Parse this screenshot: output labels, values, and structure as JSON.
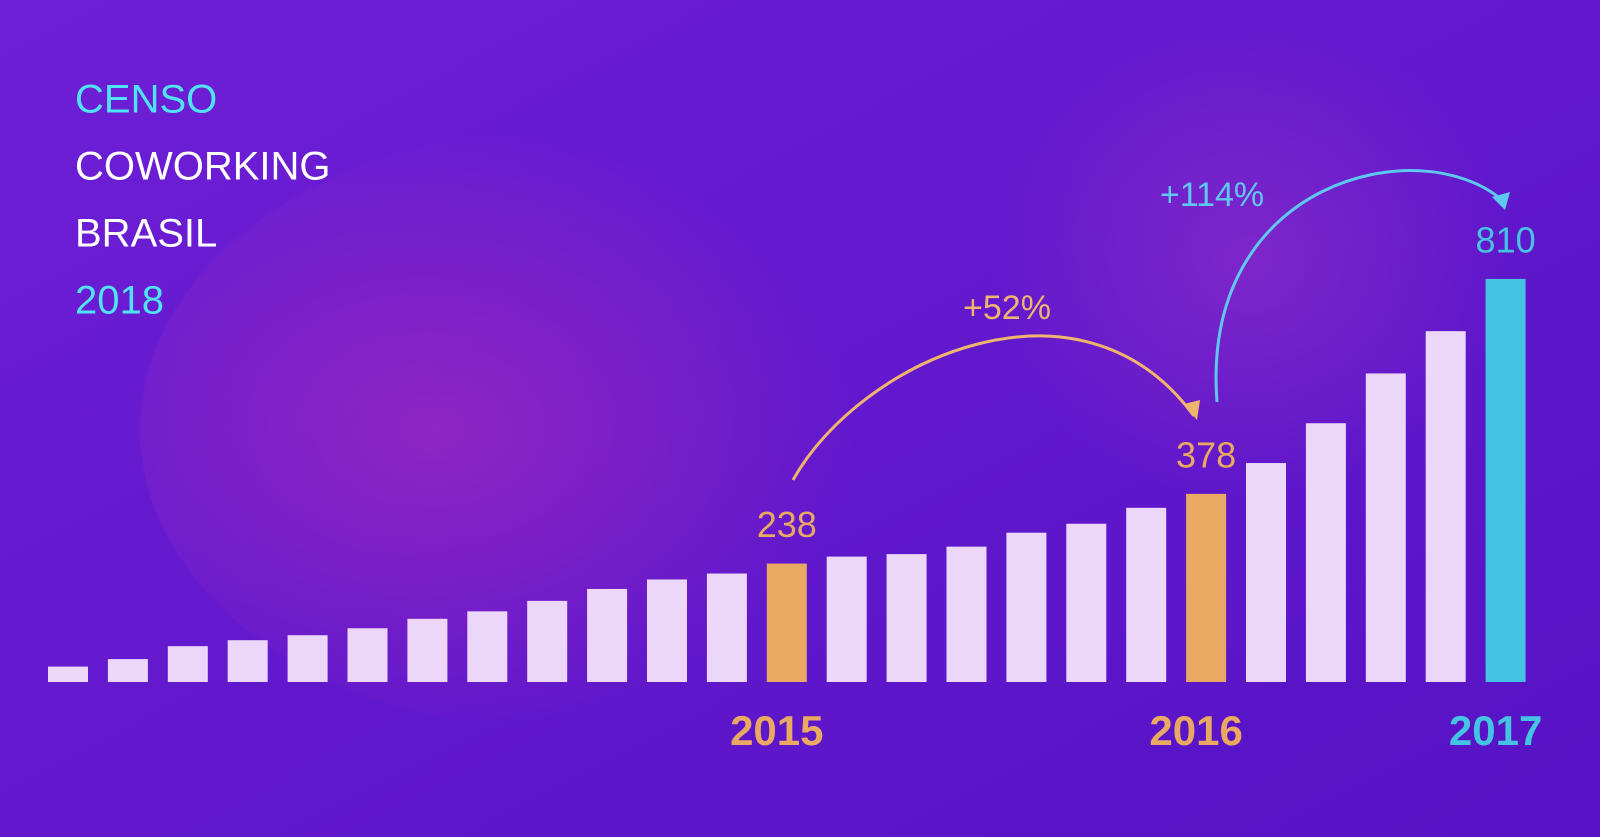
{
  "chart_data": {
    "type": "bar",
    "title_lines": [
      {
        "text": "CENSO",
        "color": "#4fe3f5"
      },
      {
        "text": "COWORKING",
        "color": "#ffffff"
      },
      {
        "text": "BRASIL",
        "color": "#ffffff"
      },
      {
        "text": "2018",
        "color": "#4fe3f5"
      }
    ],
    "categories": [
      null,
      null,
      null,
      null,
      null,
      null,
      null,
      null,
      null,
      null,
      null,
      null,
      "2015",
      null,
      null,
      null,
      null,
      null,
      null,
      "2016",
      null,
      null,
      null,
      null,
      "2017"
    ],
    "values": [
      31,
      46,
      72,
      84,
      94,
      108,
      127,
      142,
      163,
      187,
      206,
      218,
      238,
      252,
      257,
      272,
      300,
      318,
      350,
      378,
      440,
      520,
      620,
      705,
      810
    ],
    "value_labels": [
      null,
      null,
      null,
      null,
      null,
      null,
      null,
      null,
      null,
      null,
      null,
      null,
      "238",
      null,
      null,
      null,
      null,
      null,
      null,
      "378",
      null,
      null,
      null,
      null,
      "810"
    ],
    "colors": [
      "#ecd6fa",
      "#ecd6fa",
      "#ecd6fa",
      "#ecd6fa",
      "#ecd6fa",
      "#ecd6fa",
      "#ecd6fa",
      "#ecd6fa",
      "#ecd6fa",
      "#ecd6fa",
      "#ecd6fa",
      "#ecd6fa",
      "#e9a963",
      "#ecd6fa",
      "#ecd6fa",
      "#ecd6fa",
      "#ecd6fa",
      "#ecd6fa",
      "#ecd6fa",
      "#e9a963",
      "#ecd6fa",
      "#ecd6fa",
      "#ecd6fa",
      "#ecd6fa",
      "#45c3e2"
    ],
    "ylim": [
      0,
      850
    ],
    "annotations": [
      {
        "text": "+52%",
        "color": "#efb46e"
      },
      {
        "text": "+114%",
        "color": "#5ec8f0"
      }
    ]
  }
}
